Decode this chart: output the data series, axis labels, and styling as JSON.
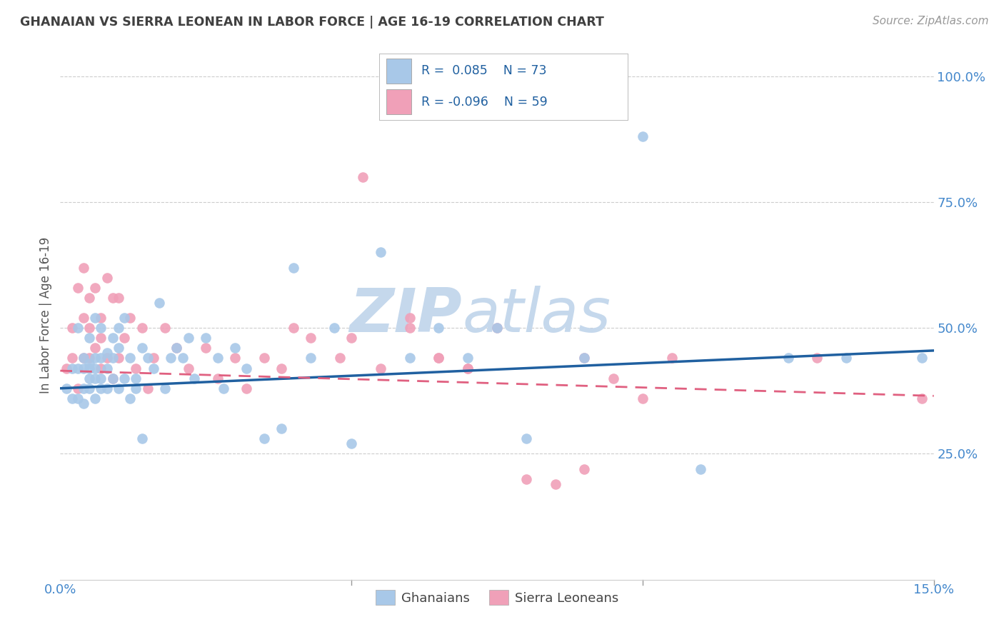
{
  "title": "GHANAIAN VS SIERRA LEONEAN IN LABOR FORCE | AGE 16-19 CORRELATION CHART",
  "source": "Source: ZipAtlas.com",
  "ylabel": "In Labor Force | Age 16-19",
  "xlim": [
    0.0,
    0.15
  ],
  "ylim": [
    0.0,
    1.05
  ],
  "ytick_vals": [
    0.25,
    0.5,
    0.75,
    1.0
  ],
  "ytick_labels": [
    "25.0%",
    "50.0%",
    "75.0%",
    "100.0%"
  ],
  "xtick_vals": [
    0.0,
    0.05,
    0.1,
    0.15
  ],
  "xtick_labels": [
    "0.0%",
    "",
    "",
    "15.0%"
  ],
  "watermark_zip": "ZIP",
  "watermark_atlas": "atlas",
  "blue_scatter_color": "#a8c8e8",
  "pink_scatter_color": "#f0a0b8",
  "blue_line_color": "#2060a0",
  "pink_line_color": "#e06080",
  "tick_color": "#4488cc",
  "ylabel_color": "#555555",
  "title_color": "#404040",
  "source_color": "#999999",
  "grid_color": "#cccccc",
  "background_color": "#ffffff",
  "legend_box_color": "#ffffff",
  "legend_border_color": "#cccccc",
  "watermark_color": "#c5d8ec",
  "ghanaian_x": [
    0.001,
    0.002,
    0.002,
    0.003,
    0.003,
    0.003,
    0.004,
    0.004,
    0.004,
    0.004,
    0.005,
    0.005,
    0.005,
    0.005,
    0.005,
    0.006,
    0.006,
    0.006,
    0.006,
    0.006,
    0.007,
    0.007,
    0.007,
    0.007,
    0.008,
    0.008,
    0.008,
    0.009,
    0.009,
    0.009,
    0.01,
    0.01,
    0.01,
    0.011,
    0.011,
    0.012,
    0.012,
    0.013,
    0.013,
    0.014,
    0.014,
    0.015,
    0.016,
    0.017,
    0.018,
    0.019,
    0.02,
    0.021,
    0.022,
    0.023,
    0.025,
    0.027,
    0.028,
    0.03,
    0.032,
    0.035,
    0.038,
    0.04,
    0.043,
    0.047,
    0.05,
    0.055,
    0.06,
    0.065,
    0.07,
    0.075,
    0.08,
    0.09,
    0.1,
    0.11,
    0.125,
    0.135,
    0.148
  ],
  "ghanaian_y": [
    0.38,
    0.42,
    0.36,
    0.5,
    0.42,
    0.36,
    0.44,
    0.38,
    0.42,
    0.35,
    0.48,
    0.43,
    0.38,
    0.4,
    0.42,
    0.52,
    0.44,
    0.4,
    0.36,
    0.42,
    0.5,
    0.38,
    0.44,
    0.4,
    0.45,
    0.38,
    0.42,
    0.48,
    0.4,
    0.44,
    0.5,
    0.38,
    0.46,
    0.4,
    0.52,
    0.36,
    0.44,
    0.4,
    0.38,
    0.46,
    0.28,
    0.44,
    0.42,
    0.55,
    0.38,
    0.44,
    0.46,
    0.44,
    0.48,
    0.4,
    0.48,
    0.44,
    0.38,
    0.46,
    0.42,
    0.28,
    0.3,
    0.62,
    0.44,
    0.5,
    0.27,
    0.65,
    0.44,
    0.5,
    0.44,
    0.5,
    0.28,
    0.44,
    0.88,
    0.22,
    0.44,
    0.44,
    0.44
  ],
  "sierra_x": [
    0.001,
    0.002,
    0.002,
    0.003,
    0.003,
    0.004,
    0.004,
    0.004,
    0.005,
    0.005,
    0.005,
    0.006,
    0.006,
    0.007,
    0.007,
    0.007,
    0.008,
    0.008,
    0.009,
    0.009,
    0.01,
    0.01,
    0.011,
    0.012,
    0.013,
    0.014,
    0.015,
    0.016,
    0.018,
    0.02,
    0.022,
    0.025,
    0.027,
    0.03,
    0.032,
    0.035,
    0.038,
    0.04,
    0.043,
    0.048,
    0.052,
    0.06,
    0.065,
    0.07,
    0.09,
    0.095,
    0.1,
    0.105,
    0.13,
    0.148,
    0.05,
    0.055,
    0.06,
    0.065,
    0.07,
    0.075,
    0.08,
    0.085,
    0.09
  ],
  "sierra_y": [
    0.42,
    0.5,
    0.44,
    0.58,
    0.38,
    0.62,
    0.52,
    0.44,
    0.56,
    0.44,
    0.5,
    0.58,
    0.46,
    0.52,
    0.48,
    0.42,
    0.6,
    0.44,
    0.56,
    0.4,
    0.56,
    0.44,
    0.48,
    0.52,
    0.42,
    0.5,
    0.38,
    0.44,
    0.5,
    0.46,
    0.42,
    0.46,
    0.4,
    0.44,
    0.38,
    0.44,
    0.42,
    0.5,
    0.48,
    0.44,
    0.8,
    0.52,
    0.44,
    0.42,
    0.44,
    0.4,
    0.36,
    0.44,
    0.44,
    0.36,
    0.48,
    0.42,
    0.5,
    0.44,
    0.42,
    0.5,
    0.2,
    0.19,
    0.22
  ],
  "gh_trend_x0": 0.0,
  "gh_trend_x1": 0.15,
  "gh_trend_y0": 0.38,
  "gh_trend_y1": 0.455,
  "sl_trend_x0": 0.0,
  "sl_trend_x1": 0.15,
  "sl_trend_y0": 0.415,
  "sl_trend_y1": 0.365
}
